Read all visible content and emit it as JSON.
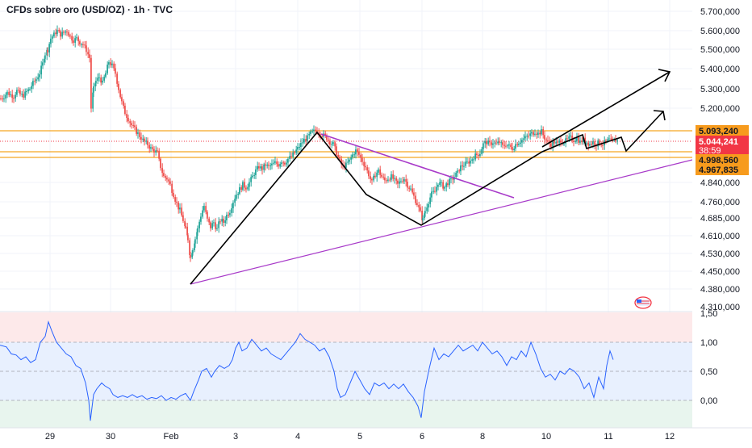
{
  "header": {
    "title": "CFDs sobre oro (USD/OZ) · 1h · TVC"
  },
  "colors": {
    "up": "#26a69a",
    "down": "#ef5350",
    "level": "#f5a623",
    "price_badge": "#f23645",
    "level_badge": "#f79b1d",
    "rsi": "#2962ff",
    "trendline": "#a83ac9",
    "drawing": "#000000"
  },
  "price_axis": {
    "ticks": [
      "5.700,000",
      "5.600,000",
      "5.500,000",
      "5.400,000",
      "5.300,000",
      "5.200,000",
      "4.840,000",
      "4.760,000",
      "4.685,000",
      "4.610,000",
      "4.530,000",
      "4.450,000",
      "4.380,000",
      "4.310,000"
    ],
    "badges": {
      "level_high": "5.093,240",
      "current": "5.044,241",
      "countdown": "38:59",
      "level_mid": "4.998,560",
      "level_low": "4.967,835"
    }
  },
  "time_axis": {
    "ticks": [
      "29",
      "30",
      "Feb",
      "3",
      "4",
      "5",
      "6",
      "8",
      "10",
      "11",
      "12"
    ]
  },
  "oscillator_axis": {
    "ticks": [
      "1,50",
      "1,00",
      "0,50",
      "0,00"
    ]
  },
  "chart_data": {
    "type": "candlestick",
    "title": "CFDs sobre oro (USD/OZ) · 1h · TVC",
    "price_ylim": [
      4310,
      5700
    ],
    "horizontal_levels": [
      5093.24,
      4998.56,
      4967.835
    ],
    "current_price": 5044.241,
    "price_path": [
      [
        0,
        5250
      ],
      [
        4,
        5260
      ],
      [
        8,
        5280
      ],
      [
        12,
        5270
      ],
      [
        16,
        5260
      ],
      [
        20,
        5290
      ],
      [
        24,
        5270
      ],
      [
        28,
        5265
      ],
      [
        32,
        5285
      ],
      [
        36,
        5300
      ],
      [
        40,
        5330
      ],
      [
        44,
        5350
      ],
      [
        48,
        5380
      ],
      [
        52,
        5430
      ],
      [
        55,
        5480
      ],
      [
        58,
        5500
      ],
      [
        62,
        5560
      ],
      [
        66,
        5580
      ],
      [
        70,
        5600
      ],
      [
        74,
        5580
      ],
      [
        78,
        5590
      ],
      [
        82,
        5600
      ],
      [
        86,
        5570
      ],
      [
        90,
        5550
      ],
      [
        94,
        5560
      ],
      [
        98,
        5540
      ],
      [
        102,
        5530
      ],
      [
        106,
        5500
      ],
      [
        110,
        5460
      ],
      [
        112,
        5200
      ],
      [
        115,
        5300
      ],
      [
        118,
        5340
      ],
      [
        122,
        5360
      ],
      [
        126,
        5330
      ],
      [
        130,
        5380
      ],
      [
        134,
        5440
      ],
      [
        138,
        5420
      ],
      [
        142,
        5380
      ],
      [
        146,
        5300
      ],
      [
        150,
        5230
      ],
      [
        154,
        5180
      ],
      [
        158,
        5150
      ],
      [
        162,
        5120
      ],
      [
        166,
        5100
      ],
      [
        170,
        5080
      ],
      [
        174,
        5060
      ],
      [
        178,
        5040
      ],
      [
        182,
        5030
      ],
      [
        186,
        5010
      ],
      [
        190,
        5000
      ],
      [
        194,
        4990
      ],
      [
        198,
        4920
      ],
      [
        202,
        4870
      ],
      [
        206,
        4860
      ],
      [
        210,
        4830
      ],
      [
        214,
        4790
      ],
      [
        218,
        4750
      ],
      [
        222,
        4720
      ],
      [
        226,
        4680
      ],
      [
        229,
        4640
      ],
      [
        232,
        4600
      ],
      [
        235,
        4520
      ],
      [
        238,
        4560
      ],
      [
        241,
        4600
      ],
      [
        244,
        4640
      ],
      [
        248,
        4700
      ],
      [
        252,
        4740
      ],
      [
        256,
        4680
      ],
      [
        260,
        4650
      ],
      [
        264,
        4670
      ],
      [
        268,
        4640
      ],
      [
        272,
        4680
      ],
      [
        276,
        4670
      ],
      [
        280,
        4700
      ],
      [
        284,
        4720
      ],
      [
        288,
        4760
      ],
      [
        292,
        4790
      ],
      [
        296,
        4810
      ],
      [
        300,
        4830
      ],
      [
        304,
        4820
      ],
      [
        308,
        4840
      ],
      [
        312,
        4870
      ],
      [
        316,
        4900
      ],
      [
        320,
        4920
      ],
      [
        324,
        4910
      ],
      [
        328,
        4930
      ],
      [
        332,
        4920
      ],
      [
        336,
        4930
      ],
      [
        340,
        4940
      ],
      [
        344,
        4930
      ],
      [
        348,
        4950
      ],
      [
        352,
        4940
      ],
      [
        356,
        4960
      ],
      [
        360,
        4970
      ],
      [
        364,
        4990
      ],
      [
        368,
        5010
      ],
      [
        372,
        5030
      ],
      [
        376,
        5050
      ],
      [
        380,
        5060
      ],
      [
        384,
        5080
      ],
      [
        388,
        5090
      ],
      [
        392,
        5095
      ],
      [
        396,
        5080
      ],
      [
        400,
        5070
      ],
      [
        404,
        5060
      ],
      [
        408,
        5040
      ],
      [
        412,
        5030
      ],
      [
        416,
        4990
      ],
      [
        420,
        4950
      ],
      [
        424,
        4920
      ],
      [
        428,
        4930
      ],
      [
        432,
        4950
      ],
      [
        436,
        4980
      ],
      [
        440,
        5000
      ],
      [
        444,
        4980
      ],
      [
        448,
        4950
      ],
      [
        452,
        4920
      ],
      [
        456,
        4880
      ],
      [
        460,
        4840
      ],
      [
        464,
        4880
      ],
      [
        468,
        4900
      ],
      [
        472,
        4870
      ],
      [
        476,
        4850
      ],
      [
        480,
        4860
      ],
      [
        484,
        4870
      ],
      [
        488,
        4850
      ],
      [
        492,
        4830
      ],
      [
        496,
        4850
      ],
      [
        500,
        4860
      ],
      [
        504,
        4830
      ],
      [
        508,
        4810
      ],
      [
        512,
        4780
      ],
      [
        516,
        4750
      ],
      [
        520,
        4710
      ],
      [
        523,
        4680
      ],
      [
        526,
        4720
      ],
      [
        530,
        4760
      ],
      [
        534,
        4790
      ],
      [
        538,
        4800
      ],
      [
        542,
        4840
      ],
      [
        546,
        4830
      ],
      [
        550,
        4820
      ],
      [
        554,
        4840
      ],
      [
        558,
        4850
      ],
      [
        562,
        4870
      ],
      [
        566,
        4890
      ],
      [
        570,
        4920
      ],
      [
        574,
        4930
      ],
      [
        578,
        4940
      ],
      [
        582,
        4950
      ],
      [
        586,
        4970
      ],
      [
        590,
        4980
      ],
      [
        594,
        4990
      ],
      [
        598,
        5030
      ],
      [
        602,
        5040
      ],
      [
        606,
        5030
      ],
      [
        610,
        5040
      ],
      [
        614,
        5030
      ],
      [
        618,
        5040
      ],
      [
        622,
        5020
      ],
      [
        626,
        5030
      ],
      [
        630,
        5020
      ],
      [
        634,
        5010
      ],
      [
        638,
        5030
      ],
      [
        642,
        5040
      ],
      [
        646,
        5050
      ],
      [
        650,
        5060
      ],
      [
        654,
        5070
      ],
      [
        658,
        5080
      ],
      [
        662,
        5090
      ],
      [
        666,
        5080
      ],
      [
        670,
        5090
      ],
      [
        674,
        5060
      ],
      [
        678,
        5040
      ],
      [
        682,
        5030
      ],
      [
        686,
        5040
      ],
      [
        690,
        5030
      ],
      [
        694,
        5050
      ],
      [
        698,
        5040
      ],
      [
        702,
        5050
      ],
      [
        706,
        5060
      ],
      [
        710,
        5050
      ],
      [
        714,
        5060
      ],
      [
        718,
        5040
      ],
      [
        722,
        5050
      ],
      [
        726,
        5040
      ],
      [
        730,
        5030
      ],
      [
        734,
        5040
      ],
      [
        738,
        5030
      ],
      [
        742,
        5040
      ],
      [
        746,
        5030
      ],
      [
        750,
        5040
      ],
      [
        754,
        5050
      ],
      [
        758,
        5040
      ],
      [
        762,
        5050
      ],
      [
        766,
        5044
      ]
    ],
    "oscillator": {
      "ylim": [
        -0.3,
        1.5
      ],
      "path": [
        [
          0,
          0.95
        ],
        [
          8,
          0.92
        ],
        [
          14,
          0.8
        ],
        [
          20,
          0.78
        ],
        [
          26,
          0.7
        ],
        [
          32,
          0.75
        ],
        [
          38,
          0.65
        ],
        [
          44,
          0.7
        ],
        [
          50,
          1.0
        ],
        [
          56,
          1.1
        ],
        [
          60,
          1.35
        ],
        [
          64,
          1.2
        ],
        [
          70,
          1.0
        ],
        [
          76,
          0.9
        ],
        [
          82,
          0.8
        ],
        [
          88,
          0.75
        ],
        [
          94,
          0.6
        ],
        [
          100,
          0.55
        ],
        [
          106,
          0.3
        ],
        [
          110,
          0.0
        ],
        [
          112,
          -0.35
        ],
        [
          116,
          0.1
        ],
        [
          120,
          0.2
        ],
        [
          126,
          0.3
        ],
        [
          130,
          0.25
        ],
        [
          136,
          0.2
        ],
        [
          140,
          0.1
        ],
        [
          146,
          0.05
        ],
        [
          152,
          0.08
        ],
        [
          158,
          0.05
        ],
        [
          164,
          0.1
        ],
        [
          170,
          0.05
        ],
        [
          176,
          0.08
        ],
        [
          182,
          0.02
        ],
        [
          188,
          0.05
        ],
        [
          194,
          0.03
        ],
        [
          200,
          0.08
        ],
        [
          206,
          0.0
        ],
        [
          212,
          0.05
        ],
        [
          218,
          0.02
        ],
        [
          224,
          0.08
        ],
        [
          230,
          0.12
        ],
        [
          236,
          0.0
        ],
        [
          240,
          0.15
        ],
        [
          246,
          0.35
        ],
        [
          250,
          0.5
        ],
        [
          256,
          0.55
        ],
        [
          262,
          0.4
        ],
        [
          266,
          0.5
        ],
        [
          272,
          0.6
        ],
        [
          278,
          0.55
        ],
        [
          284,
          0.6
        ],
        [
          288,
          0.7
        ],
        [
          292,
          0.9
        ],
        [
          296,
          1.0
        ],
        [
          300,
          0.85
        ],
        [
          306,
          0.9
        ],
        [
          312,
          1.05
        ],
        [
          318,
          0.95
        ],
        [
          324,
          0.85
        ],
        [
          330,
          0.9
        ],
        [
          336,
          0.8
        ],
        [
          342,
          0.75
        ],
        [
          348,
          0.7
        ],
        [
          354,
          0.8
        ],
        [
          360,
          0.9
        ],
        [
          366,
          1.0
        ],
        [
          372,
          1.15
        ],
        [
          378,
          1.05
        ],
        [
          384,
          1.0
        ],
        [
          390,
          0.95
        ],
        [
          396,
          0.85
        ],
        [
          402,
          0.9
        ],
        [
          408,
          0.75
        ],
        [
          414,
          0.5
        ],
        [
          418,
          0.2
        ],
        [
          422,
          0.05
        ],
        [
          428,
          0.1
        ],
        [
          434,
          0.3
        ],
        [
          440,
          0.5
        ],
        [
          446,
          0.35
        ],
        [
          452,
          0.2
        ],
        [
          458,
          0.1
        ],
        [
          464,
          0.3
        ],
        [
          470,
          0.25
        ],
        [
          476,
          0.3
        ],
        [
          482,
          0.2
        ],
        [
          488,
          0.28
        ],
        [
          494,
          0.2
        ],
        [
          500,
          0.28
        ],
        [
          506,
          0.15
        ],
        [
          512,
          0.05
        ],
        [
          518,
          -0.1
        ],
        [
          522,
          -0.3
        ],
        [
          526,
          0.15
        ],
        [
          532,
          0.55
        ],
        [
          538,
          0.9
        ],
        [
          544,
          0.7
        ],
        [
          550,
          0.8
        ],
        [
          556,
          0.75
        ],
        [
          562,
          0.85
        ],
        [
          568,
          0.95
        ],
        [
          574,
          0.85
        ],
        [
          580,
          0.9
        ],
        [
          586,
          0.95
        ],
        [
          592,
          0.85
        ],
        [
          598,
          1.0
        ],
        [
          604,
          0.9
        ],
        [
          610,
          0.8
        ],
        [
          616,
          0.85
        ],
        [
          622,
          0.75
        ],
        [
          628,
          0.6
        ],
        [
          634,
          0.75
        ],
        [
          640,
          0.7
        ],
        [
          646,
          0.85
        ],
        [
          652,
          0.75
        ],
        [
          658,
          1.0
        ],
        [
          664,
          0.8
        ],
        [
          670,
          0.55
        ],
        [
          676,
          0.4
        ],
        [
          682,
          0.45
        ],
        [
          688,
          0.35
        ],
        [
          694,
          0.5
        ],
        [
          700,
          0.45
        ],
        [
          706,
          0.55
        ],
        [
          712,
          0.5
        ],
        [
          718,
          0.4
        ],
        [
          724,
          0.2
        ],
        [
          730,
          0.3
        ],
        [
          736,
          0.05
        ],
        [
          742,
          0.4
        ],
        [
          748,
          0.2
        ],
        [
          752,
          0.6
        ],
        [
          756,
          0.85
        ],
        [
          760,
          0.7
        ]
      ]
    },
    "drawings": {
      "zigzag_projection": [
        [
          4405,
          "2026-02-02"
        ],
        [
          5095,
          "2026-02-04"
        ],
        [
          4935,
          "2026-02-05"
        ],
        [
          4668,
          "2026-02-06"
        ],
        [
          5025,
          "2026-02-10"
        ],
        [
          5065,
          "2026-02-10"
        ],
        [
          5025,
          "2026-02-11"
        ],
        [
          5065,
          "2026-02-11"
        ],
        [
          5395,
          "2026-02-12"
        ]
      ],
      "upper_target": 5395,
      "lower_target": 5195,
      "ascending_support": "from Feb 2 low toward ~4950",
      "descending_resistance": "from Feb 4 high toward ~4780"
    }
  }
}
